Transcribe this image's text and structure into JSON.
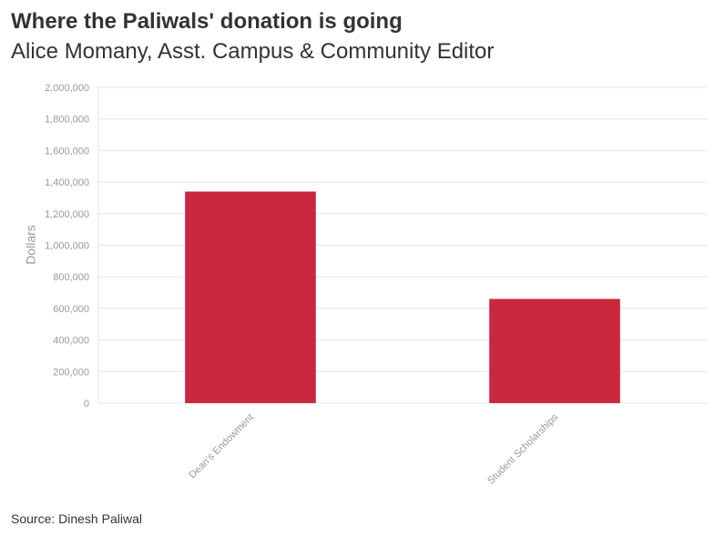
{
  "header": {
    "title": "Where the Paliwals' donation is going",
    "subtitle": "Alice Momany, Asst. Campus & Community Editor"
  },
  "footer": {
    "source_label": "Source:",
    "source_value": "Dinesh Paliwal"
  },
  "chart_data": {
    "type": "bar",
    "categories": [
      "Dean's Endowment",
      "Student Scholarships"
    ],
    "values": [
      1340000,
      660000
    ],
    "ylabel": "Dollars",
    "xlabel": "",
    "ylim": [
      0,
      2000000
    ],
    "yticks": [
      "0",
      "200,000",
      "400,000",
      "600,000",
      "800,000",
      "1,000,000",
      "1,200,000",
      "1,400,000",
      "1,600,000",
      "1,800,000",
      "2,000,000"
    ],
    "ytick_values": [
      0,
      200000,
      400000,
      600000,
      800000,
      1000000,
      1200000,
      1400000,
      1600000,
      1800000,
      2000000
    ],
    "bar_color": "#c9283e",
    "grid": true,
    "legend": "none"
  }
}
